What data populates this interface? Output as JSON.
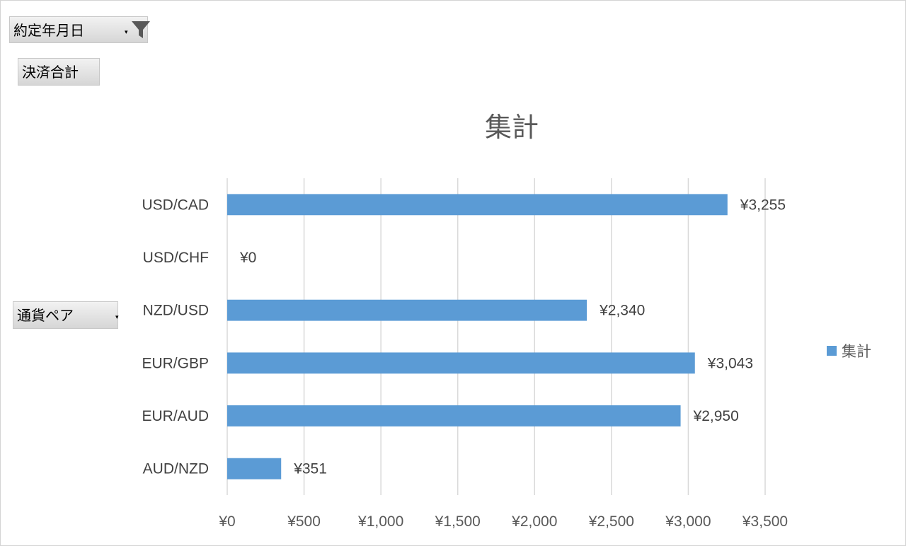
{
  "pivot_fields": {
    "filter_field": "約定年月日",
    "values_field": "決済合計",
    "axis_field": "通貨ペア",
    "dropdown_glyph": "▾",
    "filter_icon": "funnel-filter-icon"
  },
  "colors": {
    "bar": "#5b9bd5",
    "gridline": "#d9d9d9",
    "button_top": "#f2f2f2",
    "button_bottom": "#d6d6d6"
  },
  "chart_data": {
    "type": "bar",
    "orientation": "horizontal",
    "title": "集計",
    "categories": [
      "USD/CAD",
      "USD/CHF",
      "NZD/USD",
      "EUR/GBP",
      "EUR/AUD",
      "AUD/NZD"
    ],
    "series": [
      {
        "name": "集計",
        "values": [
          3255,
          0,
          2340,
          3043,
          2950,
          351
        ],
        "data_labels": [
          "¥3,255",
          "¥0",
          "¥2,340",
          "¥3,043",
          "¥2,950",
          "¥351"
        ]
      }
    ],
    "xlim": [
      0,
      3500
    ],
    "x_ticks": [
      0,
      500,
      1000,
      1500,
      2000,
      2500,
      3000,
      3500
    ],
    "x_tick_labels": [
      "¥0",
      "¥500",
      "¥1,000",
      "¥1,500",
      "¥2,000",
      "¥2,500",
      "¥3,000",
      "¥3,500"
    ],
    "xlabel": "",
    "ylabel": "",
    "grid": true,
    "legend": {
      "position": "right",
      "entries": [
        "集計"
      ]
    }
  }
}
